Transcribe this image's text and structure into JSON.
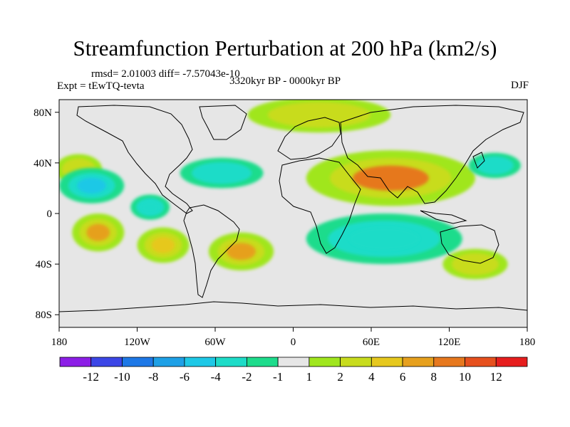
{
  "header": {
    "title": "Streamfunction Perturbation at 200 hPa (km2/s)",
    "stats": "rmsd= 2.01003  diff= -7.57043e-10",
    "experiment": "Expt = tEwTQ-tevta",
    "period": "3320kyr BP - 0000kyr BP",
    "season": "DJF"
  },
  "chart_data": {
    "type": "heatmap",
    "title": "Streamfunction Perturbation at 200 hPa (km2/s)",
    "xlim": [
      -180,
      180
    ],
    "ylim": [
      -90,
      90
    ],
    "x_ticks": [
      {
        "value": -180,
        "label": "180"
      },
      {
        "value": -120,
        "label": "120W"
      },
      {
        "value": -60,
        "label": "60W"
      },
      {
        "value": 0,
        "label": "0"
      },
      {
        "value": 60,
        "label": "60E"
      },
      {
        "value": 120,
        "label": "120E"
      },
      {
        "value": 180,
        "label": "180"
      }
    ],
    "y_ticks": [
      {
        "value": 80,
        "label": "80N"
      },
      {
        "value": 40,
        "label": "40N"
      },
      {
        "value": 0,
        "label": "0"
      },
      {
        "value": -40,
        "label": "40S"
      },
      {
        "value": -80,
        "label": "80S"
      }
    ],
    "colorbar": {
      "colors": [
        "#8c1ee6",
        "#3c46e6",
        "#1e78e6",
        "#1ea0e6",
        "#1ec8e6",
        "#1edcc8",
        "#1edc8c",
        "#e6e6e6",
        "#a0e61e",
        "#c8dc1e",
        "#e6c81e",
        "#e6a01e",
        "#e6781e",
        "#e6501e",
        "#e61e1e"
      ],
      "labels": [
        "-12",
        "-10",
        "-8",
        "-6",
        "-4",
        "-2",
        "-1",
        "1",
        "2",
        "4",
        "6",
        "8",
        "10",
        "12"
      ]
    },
    "features": [
      {
        "name": "north-pacific-positive",
        "lon": -165,
        "lat": 35,
        "value": 2,
        "rlon": 18,
        "rlat": 12
      },
      {
        "name": "north-pacific-negative",
        "lon": -155,
        "lat": 22,
        "value": -6,
        "rlon": 25,
        "rlat": 14
      },
      {
        "name": "north-atlantic-negative",
        "lon": -55,
        "lat": 32,
        "value": -2,
        "rlon": 32,
        "rlat": 12
      },
      {
        "name": "caribbean-negative",
        "lon": -110,
        "lat": 5,
        "value": -4,
        "rlon": 15,
        "rlat": 10
      },
      {
        "name": "south-pacific-positive",
        "lon": -150,
        "lat": -15,
        "value": 6,
        "rlon": 20,
        "rlat": 15
      },
      {
        "name": "south-america-positive",
        "lon": -100,
        "lat": -25,
        "value": 4,
        "rlon": 20,
        "rlat": 14
      },
      {
        "name": "south-atlantic-positive",
        "lon": -40,
        "lat": -30,
        "value": 6,
        "rlon": 25,
        "rlat": 15
      },
      {
        "name": "asia-positive",
        "lon": 75,
        "lat": 28,
        "value": 8,
        "rlon": 65,
        "rlat": 22
      },
      {
        "name": "indian-ocean-negative",
        "lon": 70,
        "lat": -20,
        "value": -4,
        "rlon": 60,
        "rlat": 20
      },
      {
        "name": "arctic-positive",
        "lon": 20,
        "lat": 78,
        "value": 2,
        "rlon": 55,
        "rlat": 14
      },
      {
        "name": "west-pacific-negative",
        "lon": 155,
        "lat": 38,
        "value": -2,
        "rlon": 20,
        "rlat": 10
      },
      {
        "name": "southern-ocean-positive",
        "lon": 140,
        "lat": -40,
        "value": 2,
        "rlon": 25,
        "rlat": 12
      }
    ]
  }
}
